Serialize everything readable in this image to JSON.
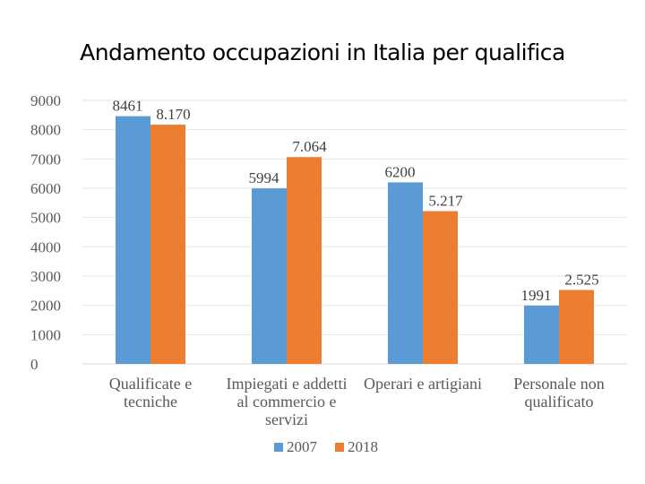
{
  "page": {
    "title": "Andamento occupazioni in Italia per qualifica"
  },
  "chart_data": {
    "type": "bar",
    "title": "Andamento occupazioni in Italia per qualifica",
    "categories": [
      [
        "Qualificate e",
        "tecniche"
      ],
      [
        "Impiegati e addetti",
        "al commercio e",
        "servizi"
      ],
      [
        "Operari e artigiani"
      ],
      [
        "Personale non",
        "qualificato"
      ]
    ],
    "series": [
      {
        "name": "2007",
        "color": "#5b9bd5",
        "values": [
          8461,
          5994,
          6200,
          1991
        ],
        "labels": [
          "8461",
          "5994",
          "6200",
          "1991"
        ]
      },
      {
        "name": "2018",
        "color": "#ed7d31",
        "values": [
          8170,
          7064,
          5217,
          2525
        ],
        "labels": [
          "8.170",
          "7.064",
          "5.217",
          "2.525"
        ]
      }
    ],
    "ylim": [
      0,
      9000
    ],
    "yticks": [
      0,
      1000,
      2000,
      3000,
      4000,
      5000,
      6000,
      7000,
      8000,
      9000
    ],
    "grid": true,
    "legend_position": "bottom"
  }
}
